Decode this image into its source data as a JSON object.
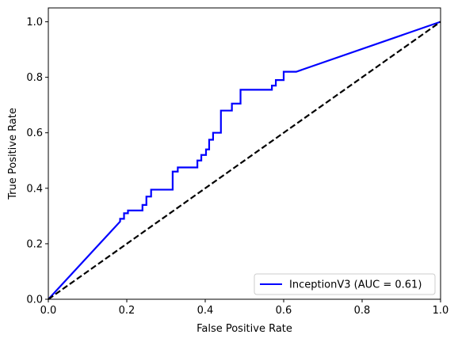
{
  "chart_data": {
    "type": "line",
    "xlabel": "False Positive Rate",
    "ylabel": "True Positive Rate",
    "xlim": [
      0.0,
      1.0
    ],
    "ylim": [
      0.0,
      1.05
    ],
    "xticks": [
      "0.0",
      "0.2",
      "0.4",
      "0.6",
      "0.8",
      "1.0"
    ],
    "yticks": [
      "0.0",
      "0.2",
      "0.4",
      "0.6",
      "0.8",
      "1.0"
    ],
    "grid": false,
    "legend_position": "lower-right",
    "series": [
      {
        "name": "InceptionV3 (AUC = 0.61)",
        "color": "#0000ff",
        "style": "solid",
        "x": [
          0.0,
          0.183,
          0.183,
          0.193,
          0.193,
          0.203,
          0.203,
          0.24,
          0.24,
          0.25,
          0.25,
          0.262,
          0.262,
          0.317,
          0.317,
          0.33,
          0.33,
          0.38,
          0.38,
          0.39,
          0.39,
          0.402,
          0.402,
          0.41,
          0.41,
          0.42,
          0.42,
          0.44,
          0.44,
          0.468,
          0.468,
          0.49,
          0.49,
          0.535,
          0.535,
          0.57,
          0.57,
          0.58,
          0.58,
          0.6,
          0.6,
          0.632,
          1.0
        ],
        "y": [
          0.0,
          0.28,
          0.29,
          0.29,
          0.31,
          0.31,
          0.32,
          0.32,
          0.34,
          0.34,
          0.37,
          0.37,
          0.395,
          0.395,
          0.46,
          0.46,
          0.475,
          0.475,
          0.5,
          0.5,
          0.52,
          0.52,
          0.54,
          0.54,
          0.575,
          0.575,
          0.6,
          0.6,
          0.68,
          0.68,
          0.705,
          0.705,
          0.755,
          0.755,
          0.755,
          0.755,
          0.77,
          0.77,
          0.79,
          0.79,
          0.82,
          0.82,
          1.0
        ]
      },
      {
        "name": "",
        "color": "#000000",
        "style": "dashed",
        "x": [
          0.0,
          1.0
        ],
        "y": [
          0.0,
          1.0
        ]
      }
    ]
  }
}
